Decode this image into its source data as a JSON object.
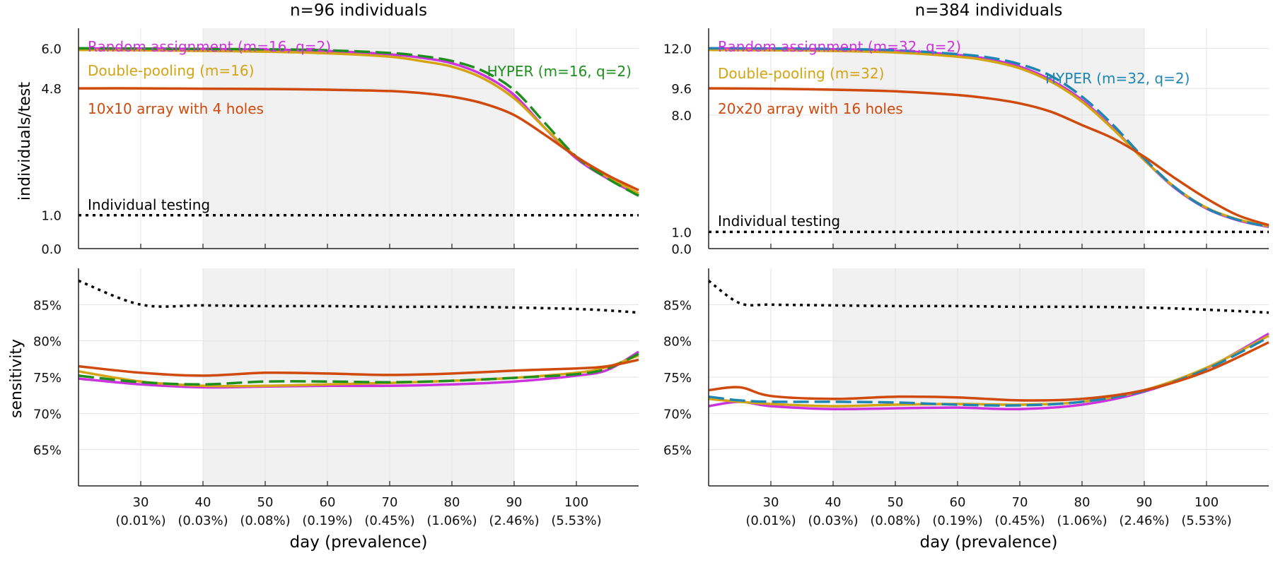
{
  "colors": {
    "random": "#cc33dd",
    "double": "#d4a412",
    "hyper_left": "#1e8f1e",
    "hyper_right": "#1f86b3",
    "array": "#cf4a0c",
    "individual": "#000000",
    "shade": "#f1f1f1",
    "grid": "#e3e3e3",
    "axis": "#222222"
  },
  "xlabel": "day (prevalence)",
  "x_ticks": [
    30,
    40,
    50,
    60,
    70,
    80,
    90,
    100
  ],
  "x_prevalence": [
    "(0.01%)",
    "(0.03%)",
    "(0.08%)",
    "(0.19%)",
    "(0.45%)",
    "(1.06%)",
    "(2.46%)",
    "(5.53%)"
  ],
  "panels": {
    "left": {
      "title": "n=96 individuals",
      "ylabel": "individuals/test",
      "yticks": [
        "0.0",
        "1.0",
        "4.8",
        "6.0"
      ],
      "labels": {
        "random": "Random assignment (m=16, q=2)",
        "double": "Double-pooling (m=16)",
        "hyper": "HYPER (m=16, q=2)",
        "array": "10x10 array with 4 holes",
        "individual": "Individual testing"
      }
    },
    "right": {
      "title": "n=384 individuals",
      "yticks": [
        "0.0",
        "1.0",
        "8.0",
        "9.6",
        "12.0"
      ],
      "labels": {
        "random": "Random assignment (m=32, q=2)",
        "double": "Double-pooling (m=32)",
        "hyper": "HYPER (m=32, q=2)",
        "array": "20x20 array with 16 holes",
        "individual": "Individual testing"
      }
    },
    "bottom": {
      "ylabel": "sensitivity",
      "yticks": [
        "65%",
        "70%",
        "75%",
        "80%",
        "85%"
      ]
    }
  },
  "chart_data": [
    {
      "type": "line",
      "panel": "top-left",
      "title": "n=96 individuals",
      "xlabel": "",
      "ylabel": "individuals/test",
      "xlim": [
        20,
        110
      ],
      "ylim": [
        0,
        6.6
      ],
      "shaded_x_range": [
        40,
        90
      ],
      "x": [
        20,
        30,
        40,
        50,
        60,
        70,
        75,
        80,
        85,
        90,
        95,
        100,
        105,
        110
      ],
      "series": [
        {
          "name": "Random assignment (m=16, q=2)",
          "key": "random",
          "values": [
            6.0,
            5.99,
            5.98,
            5.96,
            5.92,
            5.82,
            5.72,
            5.55,
            5.2,
            4.6,
            3.6,
            2.7,
            2.1,
            1.6
          ]
        },
        {
          "name": "Double-pooling (m=16)",
          "key": "double",
          "values": [
            5.95,
            5.94,
            5.92,
            5.9,
            5.85,
            5.75,
            5.62,
            5.45,
            5.1,
            4.5,
            3.6,
            2.75,
            2.15,
            1.65
          ]
        },
        {
          "name": "HYPER (m=16, q=2)",
          "key": "hyper",
          "dash": true,
          "values": [
            6.0,
            5.99,
            5.98,
            5.97,
            5.94,
            5.86,
            5.77,
            5.62,
            5.32,
            4.75,
            3.75,
            2.75,
            2.1,
            1.58
          ]
        },
        {
          "name": "10x10 array with 4 holes",
          "key": "array",
          "values": [
            4.8,
            4.8,
            4.79,
            4.78,
            4.76,
            4.72,
            4.66,
            4.55,
            4.35,
            4.0,
            3.4,
            2.75,
            2.2,
            1.75
          ]
        },
        {
          "name": "Individual testing",
          "key": "individual",
          "dotted": true,
          "values": [
            1.0,
            1.0,
            1.0,
            1.0,
            1.0,
            1.0,
            1.0,
            1.0,
            1.0,
            1.0,
            1.0,
            1.0,
            1.0,
            1.0
          ]
        }
      ]
    },
    {
      "type": "line",
      "panel": "top-right",
      "title": "n=384 individuals",
      "xlabel": "",
      "ylabel": "",
      "xlim": [
        20,
        110
      ],
      "ylim": [
        0,
        13.2
      ],
      "shaded_x_range": [
        40,
        90
      ],
      "x": [
        20,
        30,
        40,
        50,
        60,
        65,
        70,
        75,
        80,
        85,
        90,
        95,
        100,
        105,
        110
      ],
      "series": [
        {
          "name": "Random assignment (m=32, q=2)",
          "key": "random",
          "values": [
            12.0,
            11.98,
            11.94,
            11.85,
            11.6,
            11.35,
            10.9,
            10.1,
            8.9,
            7.2,
            5.3,
            3.6,
            2.4,
            1.7,
            1.3
          ]
        },
        {
          "name": "Double-pooling (m=32)",
          "key": "double",
          "values": [
            11.9,
            11.88,
            11.84,
            11.75,
            11.5,
            11.25,
            10.8,
            10.0,
            8.8,
            7.15,
            5.3,
            3.65,
            2.45,
            1.75,
            1.35
          ]
        },
        {
          "name": "HYPER (m=32, q=2)",
          "key": "hyper",
          "dash": true,
          "values": [
            12.0,
            11.99,
            11.96,
            11.88,
            11.65,
            11.45,
            11.05,
            10.35,
            9.1,
            7.4,
            5.4,
            3.65,
            2.42,
            1.72,
            1.3
          ]
        },
        {
          "name": "20x20 array with 16 holes",
          "key": "array",
          "values": [
            9.6,
            9.58,
            9.52,
            9.42,
            9.2,
            9.0,
            8.7,
            8.2,
            7.4,
            6.6,
            5.5,
            4.2,
            3.0,
            2.0,
            1.4
          ]
        },
        {
          "name": "Individual testing",
          "key": "individual",
          "dotted": true,
          "values": [
            1.0,
            1.0,
            1.0,
            1.0,
            1.0,
            1.0,
            1.0,
            1.0,
            1.0,
            1.0,
            1.0,
            1.0,
            1.0,
            1.0,
            1.0
          ]
        }
      ]
    },
    {
      "type": "line",
      "panel": "bottom-left",
      "title": "",
      "xlabel": "day (prevalence)",
      "ylabel": "sensitivity",
      "xlim": [
        20,
        110
      ],
      "ylim": [
        60,
        90
      ],
      "shaded_x_range": [
        40,
        90
      ],
      "x": [
        20,
        30,
        40,
        50,
        60,
        70,
        80,
        90,
        100,
        105,
        110
      ],
      "series": [
        {
          "key": "random",
          "values": [
            74.8,
            74.0,
            73.6,
            73.7,
            73.8,
            73.8,
            74.0,
            74.4,
            75.2,
            76.0,
            78.5
          ]
        },
        {
          "key": "double",
          "values": [
            75.8,
            74.4,
            73.8,
            73.8,
            74.0,
            74.2,
            74.5,
            74.9,
            75.6,
            76.4,
            78.0
          ]
        },
        {
          "key": "hyper",
          "dash": true,
          "values": [
            75.2,
            74.3,
            74.0,
            74.4,
            74.4,
            74.3,
            74.5,
            74.9,
            75.4,
            76.2,
            78.2
          ]
        },
        {
          "key": "array",
          "values": [
            76.5,
            75.6,
            75.2,
            75.6,
            75.5,
            75.3,
            75.5,
            75.9,
            76.2,
            76.5,
            77.4
          ]
        },
        {
          "key": "individual",
          "dotted": true,
          "values": [
            88.3,
            85.0,
            84.9,
            84.8,
            84.8,
            84.7,
            84.7,
            84.6,
            84.4,
            84.2,
            83.9
          ]
        }
      ]
    },
    {
      "type": "line",
      "panel": "bottom-right",
      "title": "",
      "xlabel": "day (prevalence)",
      "ylabel": "",
      "xlim": [
        20,
        110
      ],
      "ylim": [
        60,
        90
      ],
      "shaded_x_range": [
        40,
        90
      ],
      "x": [
        20,
        25,
        30,
        40,
        50,
        60,
        70,
        80,
        90,
        100,
        110
      ],
      "series": [
        {
          "key": "random",
          "values": [
            71.0,
            71.6,
            71.0,
            70.6,
            70.7,
            70.8,
            70.6,
            71.2,
            73.0,
            76.2,
            81.0
          ]
        },
        {
          "key": "double",
          "values": [
            72.0,
            71.6,
            71.3,
            71.0,
            71.2,
            71.3,
            71.2,
            71.6,
            73.2,
            76.3,
            80.7
          ]
        },
        {
          "key": "hyper",
          "dash": true,
          "values": [
            72.3,
            71.8,
            71.6,
            71.6,
            71.5,
            71.2,
            71.1,
            71.6,
            73.1,
            76.1,
            80.5
          ]
        },
        {
          "key": "array",
          "values": [
            73.2,
            73.6,
            72.4,
            72.0,
            72.3,
            72.2,
            71.8,
            72.0,
            73.2,
            75.8,
            79.8
          ]
        },
        {
          "key": "individual",
          "dotted": true,
          "values": [
            88.3,
            85.2,
            85.0,
            84.9,
            84.8,
            84.8,
            84.7,
            84.7,
            84.6,
            84.3,
            83.9
          ]
        }
      ]
    }
  ]
}
